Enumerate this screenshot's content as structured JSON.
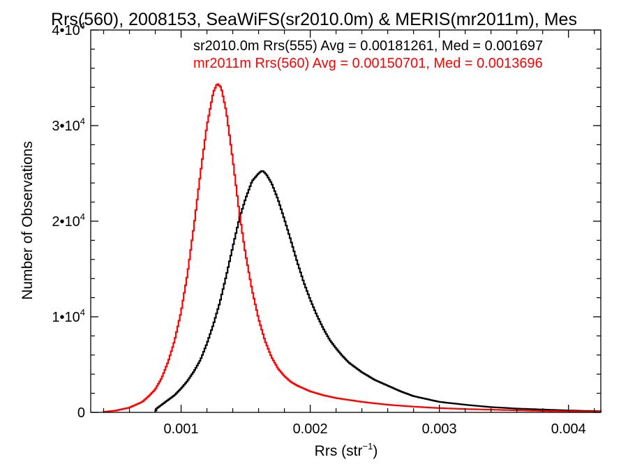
{
  "chart_data": {
    "type": "line",
    "title": "Rrs(560), 2008153, SeaWiFS(sr2010.0m) & MERIS(mr2011m), Mes",
    "xlabel": "Rrs (str",
    "xlabel_exponent": "−1",
    "xlabel_close": ")",
    "ylabel": "Number of Observations",
    "xlim": [
      0.0003,
      0.00425
    ],
    "ylim": [
      0,
      40000
    ],
    "x_ticks": [
      {
        "value": 0.001,
        "label": "0.001"
      },
      {
        "value": 0.002,
        "label": "0.002"
      },
      {
        "value": 0.003,
        "label": "0.003"
      },
      {
        "value": 0.004,
        "label": "0.004"
      }
    ],
    "y_ticks": [
      {
        "value": 0,
        "mantissa": "0",
        "exponent": ""
      },
      {
        "value": 10000,
        "mantissa": "1•10",
        "exponent": "4"
      },
      {
        "value": 20000,
        "mantissa": "2•10",
        "exponent": "4"
      },
      {
        "value": 30000,
        "mantissa": "3•10",
        "exponent": "4"
      },
      {
        "value": 40000,
        "mantissa": "4•10",
        "exponent": "4"
      }
    ],
    "legend_position": "top-right",
    "series": [
      {
        "name": "sr2010.0m Rrs(555) Avg = 0.00181261, Med = 0.001697",
        "color": "#000000",
        "points": [
          [
            0.0008,
            0
          ],
          [
            0.00081,
            400
          ],
          [
            0.00085,
            800
          ],
          [
            0.0009,
            1300
          ],
          [
            0.00095,
            1800
          ],
          [
            0.001,
            2500
          ],
          [
            0.00105,
            3300
          ],
          [
            0.0011,
            4300
          ],
          [
            0.00115,
            5500
          ],
          [
            0.0012,
            7200
          ],
          [
            0.00125,
            9200
          ],
          [
            0.0013,
            11500
          ],
          [
            0.00135,
            14300
          ],
          [
            0.0014,
            17300
          ],
          [
            0.00145,
            20200
          ],
          [
            0.0015,
            22400
          ],
          [
            0.00155,
            24200
          ],
          [
            0.0016,
            25000
          ],
          [
            0.00163,
            25300
          ],
          [
            0.00166,
            24900
          ],
          [
            0.0017,
            24000
          ],
          [
            0.00175,
            22300
          ],
          [
            0.0018,
            20200
          ],
          [
            0.00185,
            18000
          ],
          [
            0.0019,
            15700
          ],
          [
            0.00195,
            13600
          ],
          [
            0.002,
            11800
          ],
          [
            0.00205,
            10200
          ],
          [
            0.0021,
            8800
          ],
          [
            0.00215,
            7600
          ],
          [
            0.0022,
            6700
          ],
          [
            0.00225,
            5900
          ],
          [
            0.0023,
            5200
          ],
          [
            0.00235,
            4700
          ],
          [
            0.0024,
            4200
          ],
          [
            0.0025,
            3400
          ],
          [
            0.0026,
            2800
          ],
          [
            0.0027,
            2200
          ],
          [
            0.0028,
            1700
          ],
          [
            0.0029,
            1400
          ],
          [
            0.003,
            1100
          ],
          [
            0.0032,
            800
          ],
          [
            0.0034,
            550
          ],
          [
            0.0036,
            400
          ],
          [
            0.0038,
            300
          ],
          [
            0.004,
            200
          ],
          [
            0.00425,
            120
          ]
        ]
      },
      {
        "name": "mr2011m Rrs(560) Avg = 0.00150701, Med = 0.0013696",
        "color": "#ff0000",
        "points": [
          [
            0.0004,
            50
          ],
          [
            0.0005,
            200
          ],
          [
            0.0006,
            500
          ],
          [
            0.0007,
            1100
          ],
          [
            0.00075,
            1700
          ],
          [
            0.0008,
            2400
          ],
          [
            0.00085,
            3600
          ],
          [
            0.0009,
            5300
          ],
          [
            0.00095,
            7500
          ],
          [
            0.001,
            10500
          ],
          [
            0.00105,
            14500
          ],
          [
            0.0011,
            19500
          ],
          [
            0.00115,
            25000
          ],
          [
            0.0012,
            30000
          ],
          [
            0.00125,
            33500
          ],
          [
            0.00128,
            34400
          ],
          [
            0.00131,
            34000
          ],
          [
            0.00135,
            31500
          ],
          [
            0.0014,
            26500
          ],
          [
            0.00145,
            21000
          ],
          [
            0.0015,
            16500
          ],
          [
            0.00155,
            12800
          ],
          [
            0.0016,
            9800
          ],
          [
            0.00165,
            7500
          ],
          [
            0.0017,
            5800
          ],
          [
            0.00175,
            4600
          ],
          [
            0.0018,
            3800
          ],
          [
            0.00185,
            3200
          ],
          [
            0.0019,
            2800
          ],
          [
            0.002,
            2200
          ],
          [
            0.0021,
            1800
          ],
          [
            0.0022,
            1500
          ],
          [
            0.0024,
            1100
          ],
          [
            0.0026,
            800
          ],
          [
            0.0028,
            600
          ],
          [
            0.003,
            450
          ],
          [
            0.0032,
            350
          ],
          [
            0.0035,
            250
          ],
          [
            0.0038,
            150
          ],
          [
            0.00425,
            80
          ]
        ]
      }
    ]
  }
}
